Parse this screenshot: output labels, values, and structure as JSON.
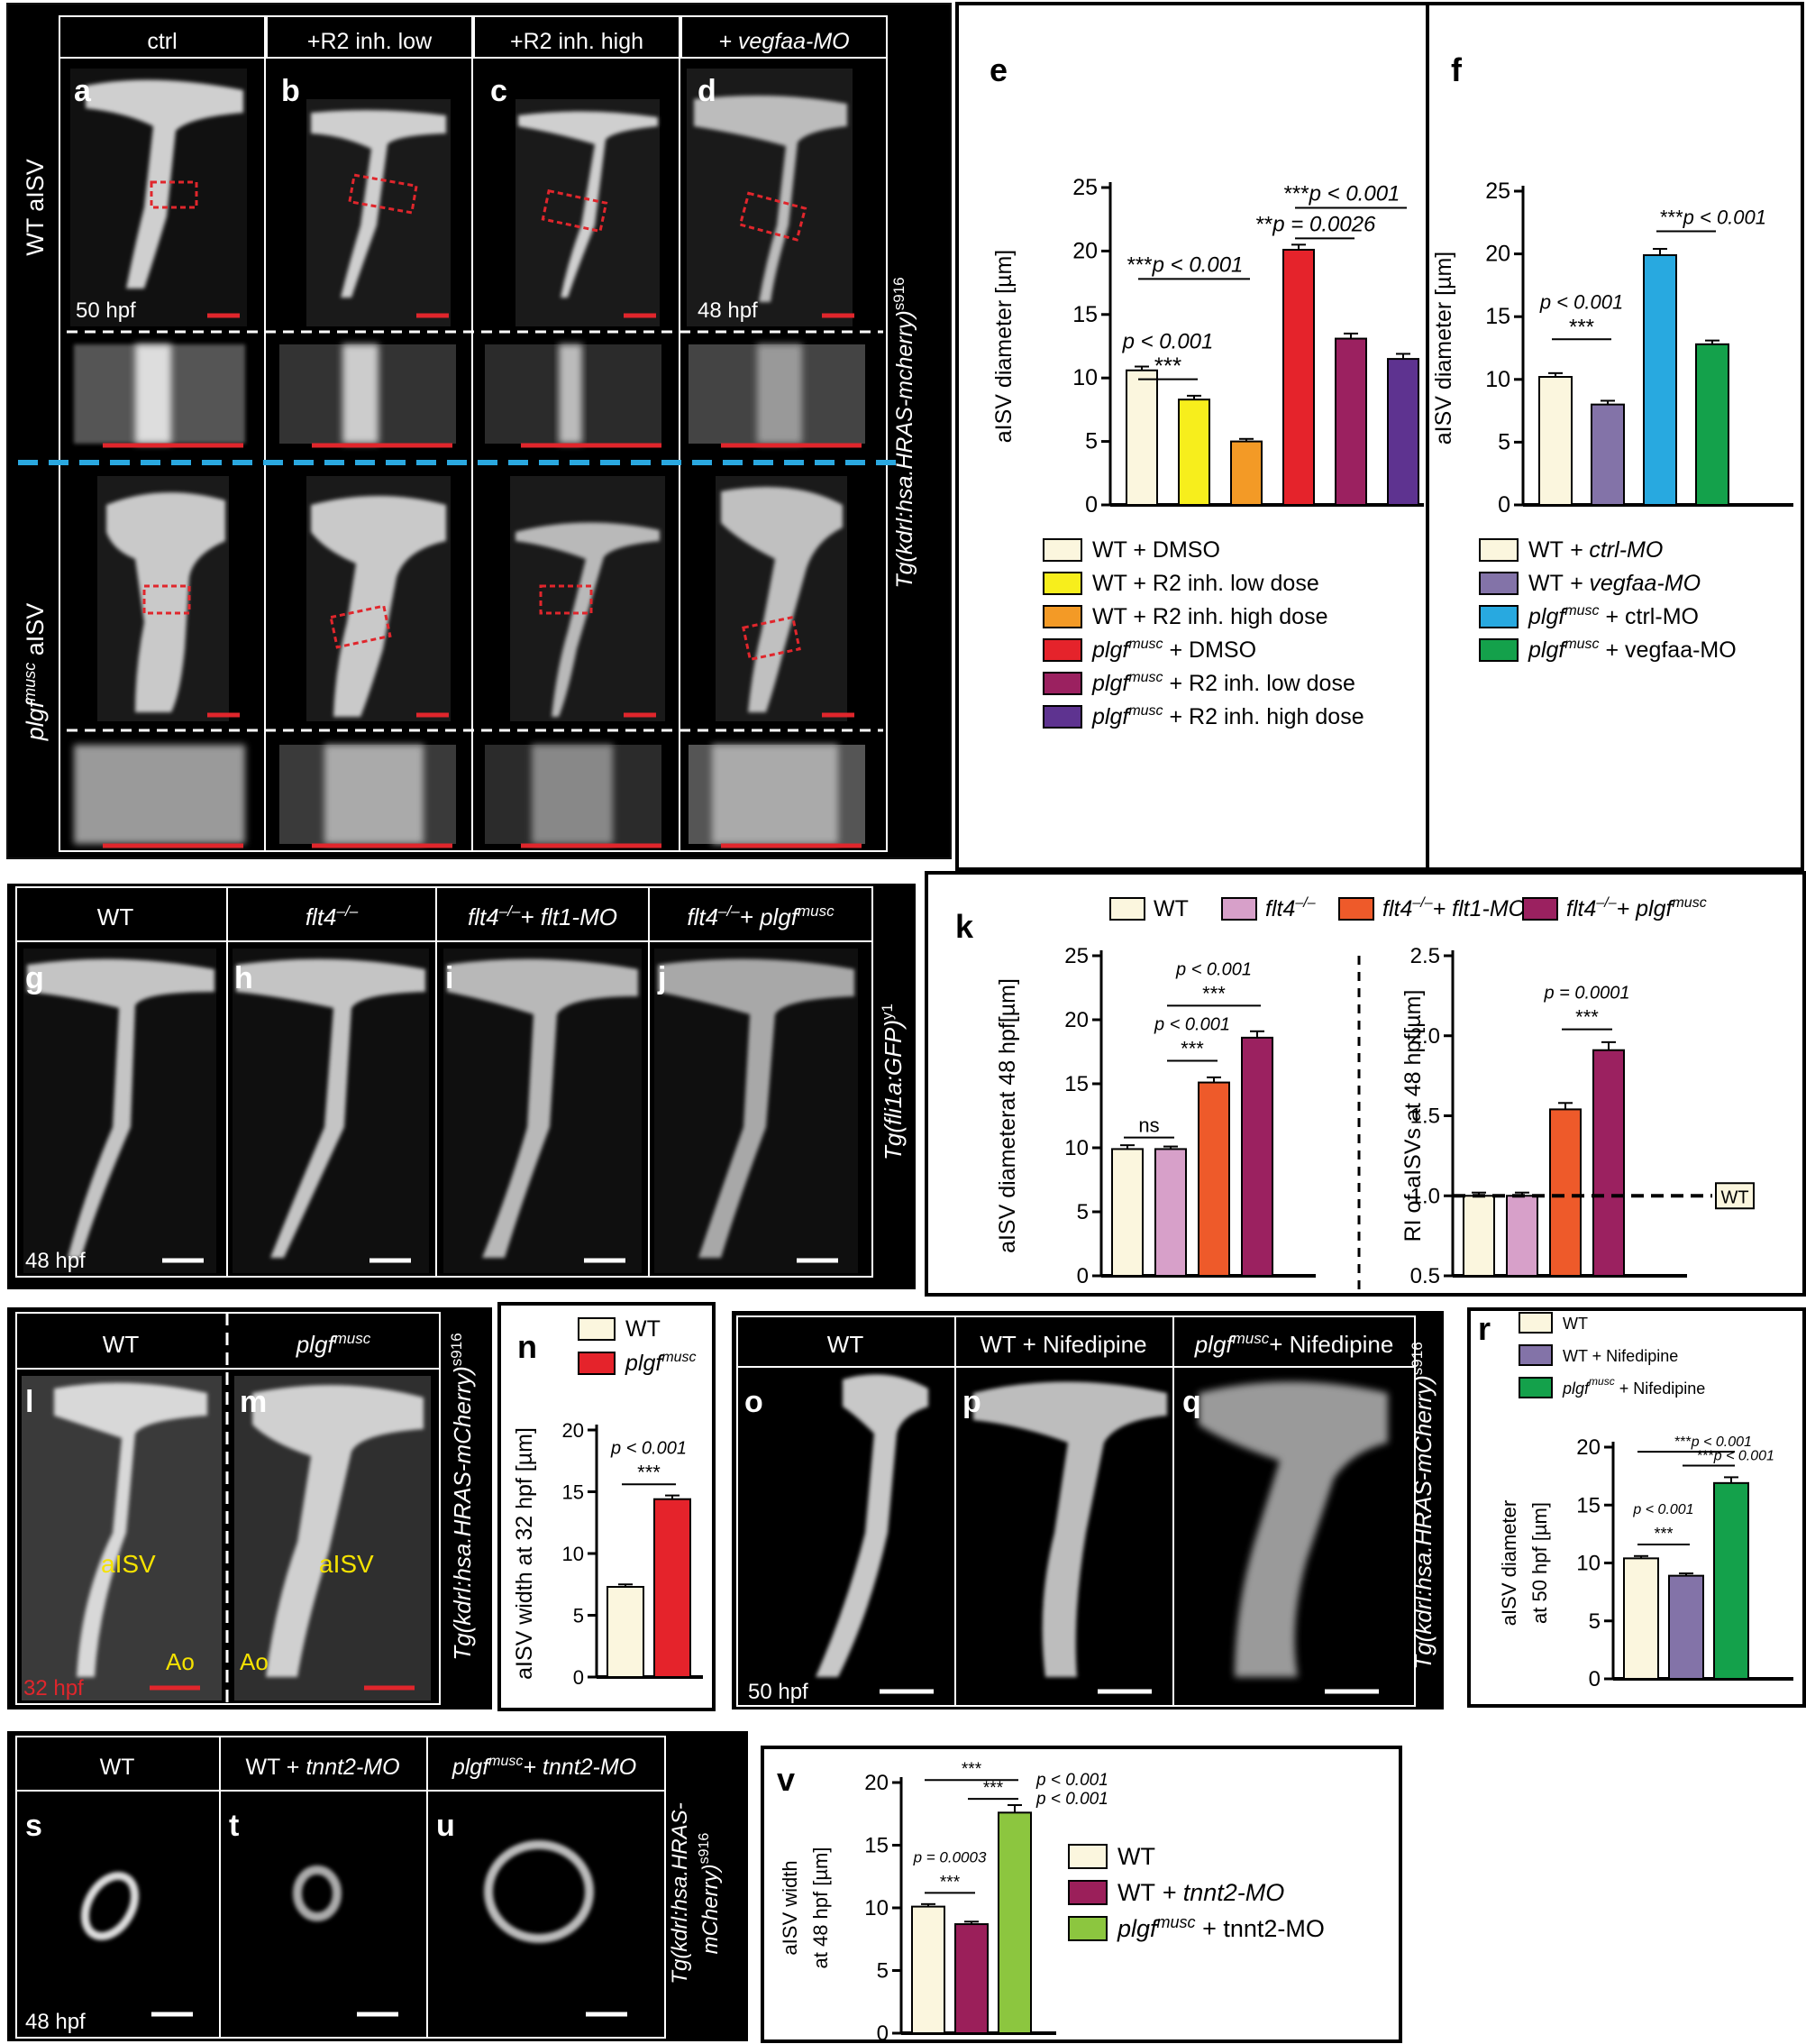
{
  "image_panels": {
    "a_d": {
      "headers": [
        "ctrl",
        "+R2 inh. low",
        "+R2 inh. high",
        "+ vegfaa-MO"
      ],
      "letters": [
        "a",
        "b",
        "c",
        "d"
      ],
      "row_labels": [
        "WT aISV",
        "plgf",
        "musc",
        " aISV"
      ],
      "time_labels": [
        "50 hpf",
        "48 hpf"
      ],
      "side_label": "Tg(kdrl:hsa.HRAS-mcherry)",
      "side_sup": "s916"
    },
    "g_j": {
      "headers": [
        "WT",
        "flt4",
        "flt4",
        "flt4"
      ],
      "header_sup": "–/–",
      "header_suffix_i": "+ flt1-MO",
      "header_suffix_j": "+ plgf",
      "header_suffix_j_sup": "musc",
      "letters": [
        "g",
        "h",
        "i",
        "j"
      ],
      "time_label": "48 hpf",
      "side_label": "Tg(fli1a:GFP)",
      "side_sup": "y1"
    },
    "l_m": {
      "headers": [
        "WT",
        "plgf"
      ],
      "header_sup": "musc",
      "letters": [
        "l",
        "m"
      ],
      "vessel_label": "aISV",
      "aorta_label": "Ao",
      "time_label": "32 hpf",
      "side_label": "Tg(kdrl:hsa.HRAS-mCherry)",
      "side_sup": "s916"
    },
    "o_q": {
      "headers": [
        "WT",
        "WT + Nifedipine",
        "plgf",
        "+ Nifedipine"
      ],
      "header_sup": "musc",
      "letters": [
        "o",
        "p",
        "q"
      ],
      "time_label": "50 hpf",
      "side_label": "Tg(kdrl:hsa.HRAS-mCherry)",
      "side_sup": "s916"
    },
    "s_u": {
      "headers": [
        "WT",
        "WT + ",
        "tnnt2-MO",
        "plgf",
        "+ tnnt2-MO"
      ],
      "header_sup": "musc",
      "letters": [
        "s",
        "t",
        "u"
      ],
      "time_label": "48 hpf",
      "side_label_1": "Tg(kdrl:hsa.HRAS-",
      "side_label_2": "mCherry)",
      "side_sup": "s916"
    }
  },
  "chart_data": [
    {
      "id": "e",
      "type": "bar",
      "letter": "e",
      "ylabel": "aISV diameter [µm]",
      "ylim": [
        0,
        25
      ],
      "yticks": [
        0,
        5,
        10,
        15,
        20,
        25
      ],
      "categories": [
        "WT + DMSO",
        "WT + R2 inh. low dose",
        "WT + R2 inh. high dose",
        "plgf musc + DMSO",
        "plgf musc + R2 inh. low dose",
        "plgf musc + R2 inh. high dose"
      ],
      "values": [
        10.6,
        8.3,
        5.0,
        20.1,
        13.1,
        11.5
      ],
      "errors": [
        0.3,
        0.3,
        0.2,
        0.4,
        0.4,
        0.4
      ],
      "colors": [
        "#FBF6DE",
        "#F7EE1C",
        "#F39A26",
        "#E5232B",
        "#9B2160",
        "#5E3390"
      ],
      "legend": [
        {
          "prefix": "WT",
          "sup": "",
          "text": " + DMSO"
        },
        {
          "prefix": "WT",
          "sup": "",
          "text": " + R2 inh. low dose"
        },
        {
          "prefix": "WT",
          "sup": "",
          "text": " + R2 inh. high dose"
        },
        {
          "prefix": "plgf",
          "sup": "musc",
          "text": " + DMSO"
        },
        {
          "prefix": "plgf",
          "sup": "musc",
          "text": " + R2 inh. low dose"
        },
        {
          "prefix": "plgf",
          "sup": "musc",
          "text": " + R2 inh. high dose"
        }
      ],
      "annotations": [
        {
          "stars": "***",
          "p": "p < 0.001",
          "from": 0,
          "to": 1,
          "y": 9.9
        },
        {
          "stars": "***",
          "p": "p < 0.001",
          "from": 0,
          "to": 2,
          "y": 17.8
        },
        {
          "stars": "**",
          "p": "p = 0.0026",
          "from": 3,
          "to": 4,
          "y": 21.0
        },
        {
          "stars": "***",
          "p": "p < 0.001",
          "from": 3,
          "to": 5,
          "y": 23.4
        }
      ]
    },
    {
      "id": "f",
      "type": "bar",
      "letter": "f",
      "ylabel": "aISV diameter [µm]",
      "ylim": [
        0,
        25
      ],
      "yticks": [
        0,
        5,
        10,
        15,
        20,
        25
      ],
      "categories": [
        "WT + ctrl-MO",
        "WT + vegfaa-MO",
        "plgf musc + ctrl-MO",
        "plgf musc + vegfaa-MO"
      ],
      "values": [
        10.2,
        8.0,
        19.9,
        12.8
      ],
      "errors": [
        0.3,
        0.3,
        0.5,
        0.3
      ],
      "colors": [
        "#FBF6DE",
        "#8373A8",
        "#28A9E0",
        "#14A14B"
      ],
      "legend": [
        {
          "prefix": "WT",
          "sup": "",
          "text": " + ctrl-MO"
        },
        {
          "prefix": "WT",
          "sup": "",
          "text": " + vegfaa-MO"
        },
        {
          "prefix": "plgf",
          "sup": "musc",
          "text": " + ctrl-MO"
        },
        {
          "prefix": "plgf",
          "sup": "musc",
          "text": " + vegfaa-MO"
        }
      ],
      "annotations": [
        {
          "stars": "***",
          "p": "p < 0.001",
          "from": 0,
          "to": 1,
          "y": 13.2
        },
        {
          "stars": "***",
          "p": "p < 0.001",
          "from": 2,
          "to": 3,
          "y": 21.8
        }
      ]
    },
    {
      "id": "k1",
      "type": "bar",
      "letter": "k",
      "ylabel": "aISV diameterat 48 hpf[µm]",
      "ylim": [
        0,
        25
      ],
      "yticks": [
        0,
        5,
        10,
        15,
        20,
        25
      ],
      "categories": [
        "WT",
        "flt4 -/-",
        "flt4 -/- + flt1-MO",
        "flt4 -/- + plgf musc"
      ],
      "values": [
        9.9,
        9.9,
        15.1,
        18.6
      ],
      "errors": [
        0.3,
        0.2,
        0.4,
        0.5
      ],
      "colors": [
        "#FBF6DE",
        "#D7A0C9",
        "#EE5A2A",
        "#9B2160"
      ],
      "legend": [
        {
          "prefix": "WT",
          "sup": "",
          "text": ""
        },
        {
          "prefix": "flt4",
          "sup": "–/–",
          "text": ""
        },
        {
          "prefix": "flt4",
          "sup": "–/–",
          "text": "+ flt1-MO"
        },
        {
          "prefix": "flt4",
          "sup": "–/–",
          "text": "+ plgf"
        }
      ],
      "legend_last_sup": "musc",
      "annotations": [
        {
          "stars": "ns",
          "p": "",
          "from": 0,
          "to": 1,
          "y": 10.8
        },
        {
          "stars": "***",
          "p": "p < 0.001",
          "from": 1,
          "to": 2,
          "y": 16.8
        },
        {
          "stars": "***",
          "p": "p < 0.001",
          "from": 1,
          "to": 3,
          "y": 21.1
        }
      ]
    },
    {
      "id": "k2",
      "type": "bar",
      "ylabel": "RI of aISVs at 48 hpf[µm]",
      "ylim": [
        0.5,
        2.5
      ],
      "yticks": [
        0.5,
        1.0,
        1.5,
        2.0,
        2.5
      ],
      "categories": [
        "WT",
        "flt4 -/-",
        "flt4 -/- + flt1-MO",
        "flt4 -/- + plgf musc"
      ],
      "values": [
        1.0,
        1.0,
        1.54,
        1.91
      ],
      "errors": [
        0.02,
        0.02,
        0.04,
        0.05
      ],
      "colors": [
        "#FBF6DE",
        "#D7A0C9",
        "#EE5A2A",
        "#9B2160"
      ],
      "reference_label": "WT",
      "annotations": [
        {
          "stars": "***",
          "p": "p = 0.0001",
          "from": 2,
          "to": 3,
          "y": 2.04
        }
      ]
    },
    {
      "id": "n",
      "type": "bar",
      "letter": "n",
      "ylabel": "aISV width at 32 hpf [µm]",
      "ylim": [
        0,
        20
      ],
      "yticks": [
        0,
        5,
        10,
        15,
        20
      ],
      "categories": [
        "WT",
        "plgf musc"
      ],
      "values": [
        7.3,
        14.4
      ],
      "errors": [
        0.2,
        0.3
      ],
      "colors": [
        "#FBF6DE",
        "#E5232B"
      ],
      "legend": [
        {
          "prefix": "WT",
          "sup": "",
          "text": ""
        },
        {
          "prefix": "plgf",
          "sup": "musc",
          "text": ""
        }
      ],
      "annotations": [
        {
          "stars": "***",
          "p": "p < 0.001",
          "from": 0,
          "to": 1,
          "y": 15.6
        }
      ]
    },
    {
      "id": "r",
      "type": "bar",
      "letter": "r",
      "ylabel": "aISV diameter",
      "ylabel2": "at 50 hpf [µm]",
      "ylim": [
        0,
        20
      ],
      "yticks": [
        0,
        5,
        10,
        15,
        20
      ],
      "categories": [
        "WT",
        "WT + Nifedipine",
        "plgf musc + Nifedipine"
      ],
      "values": [
        10.4,
        8.9,
        16.9
      ],
      "errors": [
        0.2,
        0.2,
        0.5
      ],
      "colors": [
        "#FBF6DE",
        "#8373A8",
        "#14A14B"
      ],
      "legend": [
        {
          "prefix": "WT",
          "sup": "",
          "text": ""
        },
        {
          "prefix": "WT",
          "sup": "",
          "text": " + Nifedipine"
        },
        {
          "prefix": "plgf",
          "sup": "musc",
          "text": " + Nifedipine"
        }
      ],
      "annotations": [
        {
          "stars": "***",
          "p": "p < 0.001",
          "from": 0,
          "to": 1,
          "y": 11.6
        },
        {
          "stars": "***",
          "p": "p < 0.001",
          "from": 1,
          "to": 2,
          "y": 18.4
        },
        {
          "stars": "***",
          "p": "p < 0.001",
          "from": 0,
          "to": 2,
          "y": 19.6
        }
      ]
    },
    {
      "id": "v",
      "type": "bar",
      "letter": "v",
      "ylabel": "aISV width",
      "ylabel2": "at 48 hpf [µm]",
      "ylim": [
        0,
        20
      ],
      "yticks": [
        0,
        5,
        10,
        15,
        20
      ],
      "categories": [
        "WT",
        "WT + tnnt2-MO",
        "plgf musc + tnnt2-MO"
      ],
      "values": [
        10.1,
        8.7,
        17.6
      ],
      "errors": [
        0.2,
        0.2,
        0.6
      ],
      "colors": [
        "#FBF6DE",
        "#9B1F5A",
        "#8CC63F"
      ],
      "legend": [
        {
          "prefix": "WT",
          "sup": "",
          "text": ""
        },
        {
          "prefix": "WT",
          "sup": "",
          "text": " + tnnt2-MO"
        },
        {
          "prefix": "plgf",
          "sup": "musc",
          "text": " + tnnt2-MO"
        }
      ],
      "annotations": [
        {
          "stars": "***",
          "p": "p = 0.0003",
          "from": 0,
          "to": 1,
          "y": 11.2
        },
        {
          "stars": "***",
          "p": "p < 0.001",
          "from": 1,
          "to": 2,
          "y": 18.7
        },
        {
          "stars": "***",
          "p": "p < 0.001",
          "from": 0,
          "to": 2,
          "y": 20.2
        }
      ]
    }
  ]
}
